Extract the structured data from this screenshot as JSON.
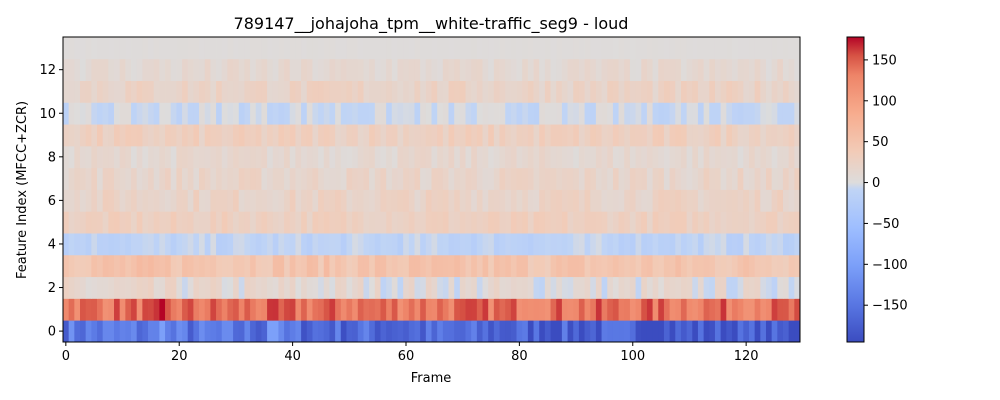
{
  "chart_data": {
    "type": "heatmap",
    "title": "789147__johajoha_tpm__white-traffic_seg9 - loud",
    "xlabel": "Frame",
    "ylabel": "Feature Index (MFCC+ZCR)",
    "n_frames": 130,
    "n_features": 14,
    "xlim": [
      -0.5,
      129.5
    ],
    "ylim": [
      -0.5,
      13.5
    ],
    "x_ticks": [
      0,
      20,
      40,
      60,
      80,
      100,
      120
    ],
    "y_ticks": [
      0,
      2,
      4,
      6,
      8,
      10,
      12
    ],
    "colormap": "coolwarm",
    "vmin": -195,
    "vmax": 178,
    "colorbar_ticks": [
      150,
      100,
      50,
      0,
      -50,
      -100,
      -150
    ],
    "row_profiles": [
      {
        "row": 0,
        "base": -145,
        "variation": 35,
        "trend": -40
      },
      {
        "row": 1,
        "base": 140,
        "variation": 25,
        "trend": 0
      },
      {
        "row": 2,
        "base": 10,
        "variation": 18,
        "trend": -5
      },
      {
        "row": 3,
        "base": 50,
        "variation": 15,
        "trend": -5
      },
      {
        "row": 4,
        "base": -12,
        "variation": 10,
        "trend": 0
      },
      {
        "row": 5,
        "base": 28,
        "variation": 10,
        "trend": 0
      },
      {
        "row": 6,
        "base": 22,
        "variation": 12,
        "trend": 0
      },
      {
        "row": 7,
        "base": 18,
        "variation": 12,
        "trend": 0
      },
      {
        "row": 8,
        "base": 12,
        "variation": 10,
        "trend": 0
      },
      {
        "row": 9,
        "base": 28,
        "variation": 12,
        "trend": 0
      },
      {
        "row": 10,
        "base": -5,
        "variation": 10,
        "trend": 0
      },
      {
        "row": 11,
        "base": 22,
        "variation": 12,
        "trend": 0
      },
      {
        "row": 12,
        "base": 10,
        "variation": 10,
        "trend": 0
      },
      {
        "row": 13,
        "base": 2,
        "variation": 1,
        "trend": 0
      }
    ]
  }
}
